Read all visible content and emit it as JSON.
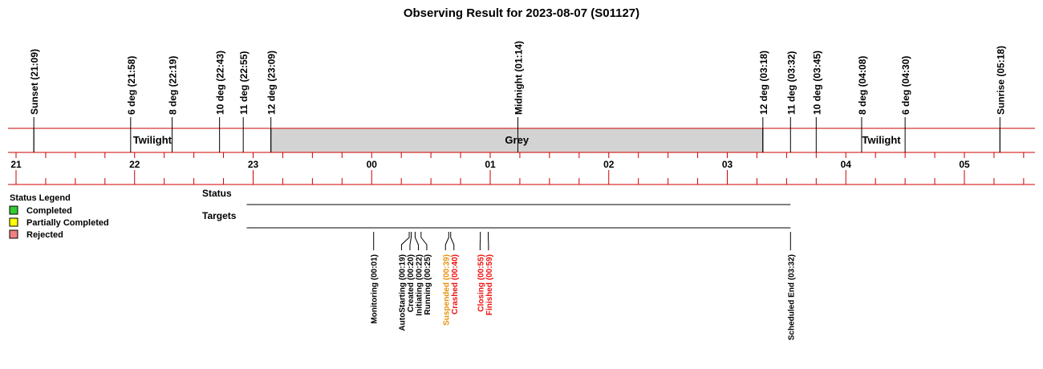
{
  "chart_data": {
    "type": "timeline",
    "title": "Observing Result for 2023-08-07 (S01127)",
    "sun_events": [
      {
        "label": "Sunset (21:09)",
        "time": "21:09"
      },
      {
        "label": "6 deg (21:58)",
        "time": "21:58"
      },
      {
        "label": "8 deg (22:19)",
        "time": "22:19"
      },
      {
        "label": "10 deg (22:43)",
        "time": "22:43"
      },
      {
        "label": "11 deg (22:55)",
        "time": "22:55"
      },
      {
        "label": "12 deg (23:09)",
        "time": "23:09"
      },
      {
        "label": "Midnight (01:14)",
        "time": "01:14"
      },
      {
        "label": "12 deg (03:18)",
        "time": "03:18"
      },
      {
        "label": "11 deg (03:32)",
        "time": "03:32"
      },
      {
        "label": "10 deg (03:45)",
        "time": "03:45"
      },
      {
        "label": "8 deg (04:08)",
        "time": "04:08"
      },
      {
        "label": "6 deg (04:30)",
        "time": "04:30"
      },
      {
        "label": "Sunrise (05:18)",
        "time": "05:18"
      }
    ],
    "bands": [
      {
        "label": "Twilight",
        "start": "21:09",
        "end": "23:09",
        "color": "#ffffff"
      },
      {
        "label": "Grey",
        "start": "23:09",
        "end": "03:18",
        "color": "#d3d3d3"
      },
      {
        "label": "Twilight",
        "start": "03:18",
        "end": "05:18",
        "color": "#ffffff"
      }
    ],
    "hour_ticks": [
      "21",
      "22",
      "23",
      "00",
      "01",
      "02",
      "03",
      "04",
      "05"
    ],
    "axis_range": [
      "21:00",
      "05:30"
    ],
    "rows": [
      {
        "label": "Status",
        "start": "23:00",
        "end": "03:32"
      },
      {
        "label": "Targets",
        "start": "23:00",
        "end": "03:32"
      }
    ],
    "events": [
      {
        "label": "Monitoring (00:01)",
        "time": "00:01",
        "color": "#000000"
      },
      {
        "label": "AutoStarting (00:19)",
        "time": "00:19",
        "color": "#000000"
      },
      {
        "label": "Created (00:20)",
        "time": "00:20",
        "color": "#000000"
      },
      {
        "label": "Initiating (00:22)",
        "time": "00:22",
        "color": "#000000"
      },
      {
        "label": "Running (00:25)",
        "time": "00:25",
        "color": "#000000"
      },
      {
        "label": "Suspended (00:39)",
        "time": "00:39",
        "color": "#e8900c"
      },
      {
        "label": "Crashed (00:40)",
        "time": "00:40",
        "color": "#ee1111"
      },
      {
        "label": "Closing (00:55)",
        "time": "00:55",
        "color": "#ee1111"
      },
      {
        "label": "Finished (00:59)",
        "time": "00:59",
        "color": "#ee1111"
      },
      {
        "label": "Scheduled End (03:32)",
        "time": "03:32",
        "color": "#000000"
      }
    ],
    "legend": {
      "title": "Status Legend",
      "placement": "left",
      "items": [
        {
          "label": "Completed",
          "color": "#33cc33"
        },
        {
          "label": "Partially Completed",
          "color": "#ffff00"
        },
        {
          "label": "Rejected",
          "color": "#f08080"
        }
      ]
    },
    "colors": {
      "axis_line": "#cc0000",
      "grid_line": "#000000"
    }
  }
}
